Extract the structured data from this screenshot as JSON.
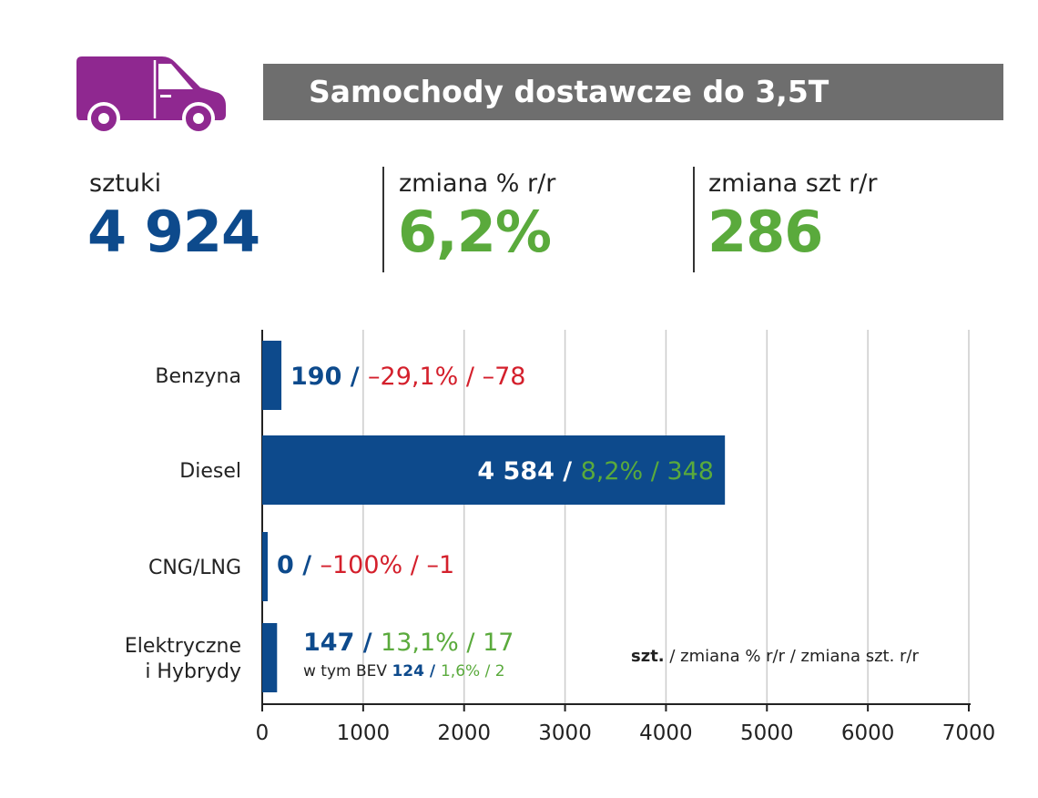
{
  "colors": {
    "blue": "#0d4a8c",
    "green": "#5aaa3c",
    "red": "#d4202c",
    "purple": "#8f2890",
    "title_bg": "#6e6e6e",
    "grid": "#cccccc"
  },
  "header": {
    "title": "Samochody dostawcze do 3,5T",
    "icon": "van-icon"
  },
  "stats": {
    "units": {
      "label": "sztuki",
      "value": "4 924"
    },
    "change_pct": {
      "label": "zmiana % r/r",
      "value": "6,2%"
    },
    "change_units": {
      "label": "zmiana szt r/r",
      "value": "286"
    }
  },
  "chart_data": {
    "type": "bar",
    "orientation": "horizontal",
    "categories": [
      "Benzyna",
      "Diesel",
      "CNG/LNG",
      "Elektryczne i Hybrydy"
    ],
    "category_lines": [
      [
        "Benzyna"
      ],
      [
        "Diesel"
      ],
      [
        "CNG/LNG"
      ],
      [
        "Elektryczne",
        "i Hybrydy"
      ]
    ],
    "values": [
      190,
      4584,
      0,
      147
    ],
    "labels": [
      {
        "value": "190",
        "pct": "–29,1%",
        "diff": "–78"
      },
      {
        "value": "4 584",
        "pct": "8,2%",
        "diff": "348"
      },
      {
        "value": "0",
        "pct": "–100%",
        "diff": "–1"
      },
      {
        "value": "147",
        "pct": "13,1%",
        "diff": "17"
      }
    ],
    "sub_label": {
      "prefix": "w tym BEV",
      "value": "124",
      "pct": "1,6%",
      "diff": "2"
    },
    "xlim": [
      0,
      7000
    ],
    "xticks": [
      "0",
      "1000",
      "2000",
      "3000",
      "4000",
      "5000",
      "6000",
      "7000"
    ],
    "legend": {
      "bold": "szt.",
      "rest": " / zmiana % r/r / zmiana szt. r/r"
    },
    "grid": true
  }
}
